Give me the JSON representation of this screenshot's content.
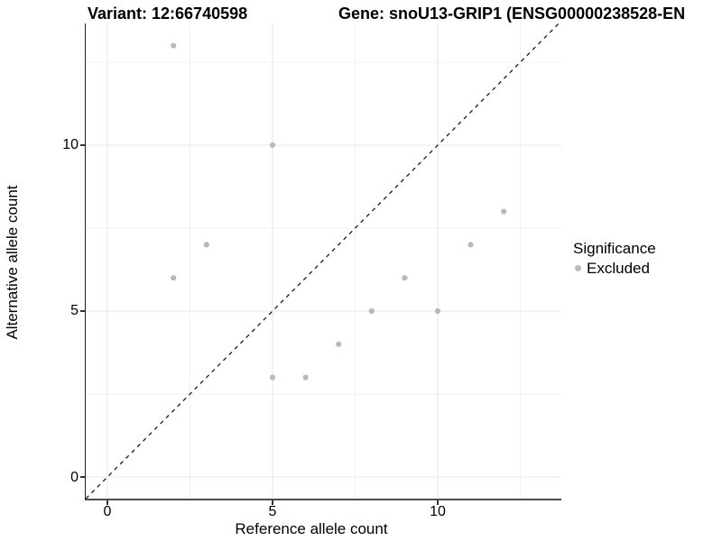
{
  "figure": {
    "title_variant": "Variant: 12:66740598",
    "title_gene": "Gene: snoU13-GRIP1 (ENSG00000238528-EN",
    "x_axis_label": "Reference allele count",
    "y_axis_label": "Alternative allele count"
  },
  "legend": {
    "title": "Significance",
    "items": [
      {
        "label": "Excluded",
        "marker": "grey-dot"
      }
    ]
  },
  "colors": {
    "point": "#b9b9b9",
    "grid_major": "#e7e7e7",
    "grid_minor": "#f1f1f1",
    "identity_line": "#1a1a1a",
    "axis_line": "#333333",
    "background": "#ffffff",
    "text": "#000000"
  },
  "chart_data": {
    "type": "scatter",
    "title": "Variant: 12:66740598    Gene: snoU13-GRIP1 (ENSG00000238528-EN",
    "xlabel": "Reference allele count",
    "ylabel": "Alternative allele count",
    "series": [
      {
        "name": "Excluded",
        "points": [
          [
            2,
            6
          ],
          [
            2,
            13
          ],
          [
            3,
            7
          ],
          [
            5,
            3
          ],
          [
            5,
            10
          ],
          [
            6,
            3
          ],
          [
            7,
            4
          ],
          [
            8,
            5
          ],
          [
            9,
            6
          ],
          [
            10,
            5
          ],
          [
            11,
            7
          ],
          [
            12,
            8
          ]
        ]
      }
    ],
    "xlim": [
      -0.656,
      13.743
    ],
    "ylim": [
      -0.652,
      13.668
    ],
    "x_ticks": [
      0,
      5,
      10
    ],
    "y_ticks": [
      0,
      5,
      10
    ],
    "x_minor_gridlines": [
      2.5,
      7.5,
      12.5
    ],
    "y_minor_gridlines": [
      2.5,
      7.5,
      12.5
    ],
    "reference_line": {
      "type": "identity",
      "style": "dashed",
      "label": "y = x"
    },
    "grid": true,
    "legend_position": "right",
    "point_radius_px": 3.1
  }
}
